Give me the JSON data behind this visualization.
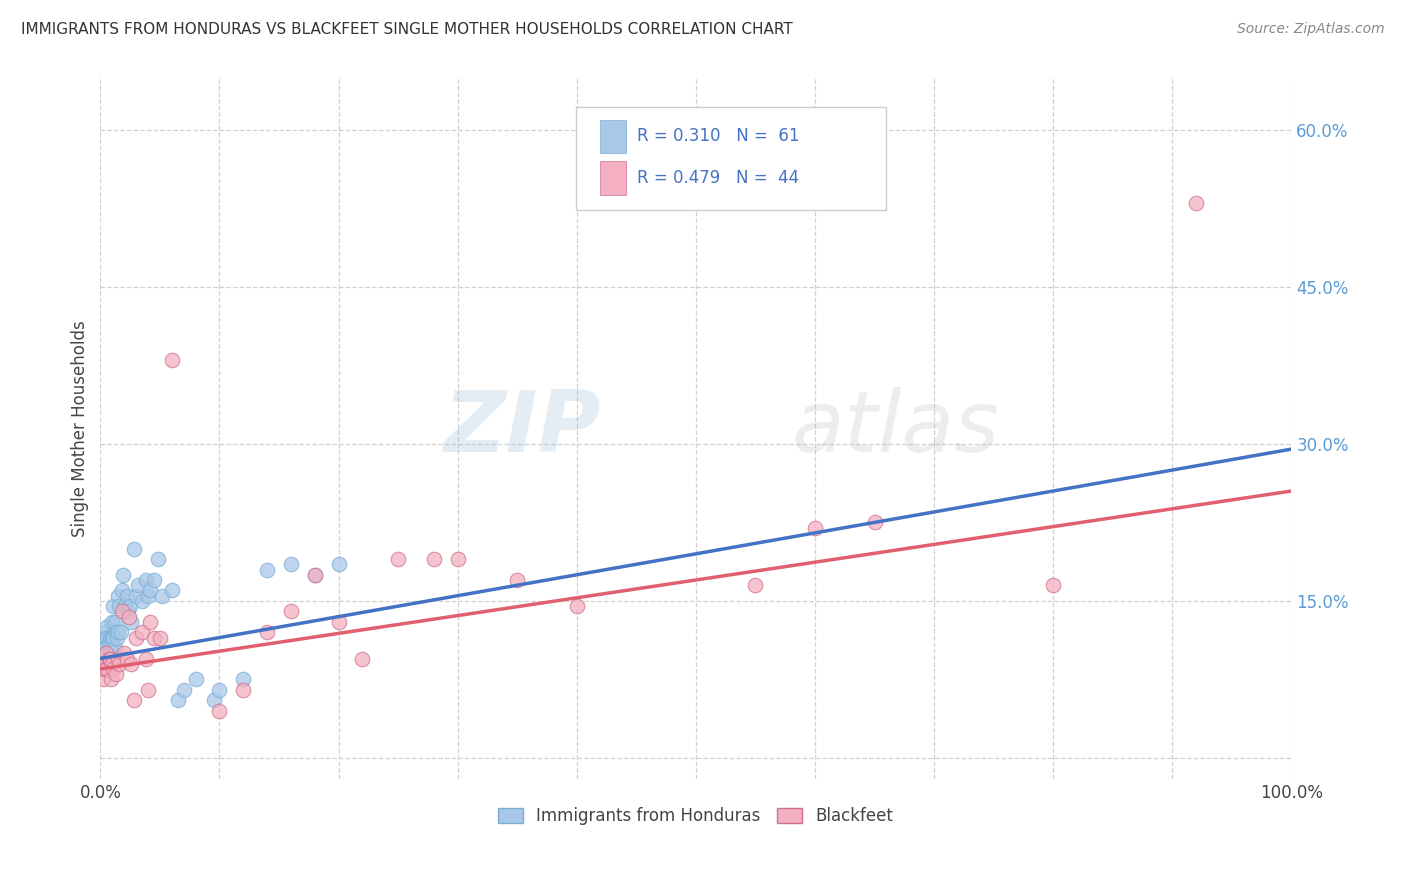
{
  "title": "IMMIGRANTS FROM HONDURAS VS BLACKFEET SINGLE MOTHER HOUSEHOLDS CORRELATION CHART",
  "source": "Source: ZipAtlas.com",
  "ylabel": "Single Mother Households",
  "legend_label_1": "Immigrants from Honduras",
  "legend_label_2": "Blackfeet",
  "legend_r1": "R = 0.310",
  "legend_n1": "N =  61",
  "legend_r2": "R = 0.479",
  "legend_n2": "N =  44",
  "color_blue": "#a8c8e8",
  "color_pink": "#f4b0c0",
  "line_blue": "#4472c4",
  "line_pink": "#e06070",
  "xlim": [
    0,
    1.0
  ],
  "ylim": [
    -0.02,
    0.65
  ],
  "xtick_positions": [
    0.0,
    0.1,
    0.2,
    0.3,
    0.4,
    0.5,
    0.6,
    0.7,
    0.8,
    0.9,
    1.0
  ],
  "ytick_positions": [
    0.0,
    0.15,
    0.3,
    0.45,
    0.6
  ],
  "blue_scatter_x": [
    0.002,
    0.003,
    0.003,
    0.004,
    0.004,
    0.004,
    0.005,
    0.005,
    0.005,
    0.005,
    0.006,
    0.006,
    0.007,
    0.007,
    0.008,
    0.008,
    0.009,
    0.009,
    0.01,
    0.01,
    0.01,
    0.011,
    0.011,
    0.012,
    0.012,
    0.013,
    0.013,
    0.014,
    0.015,
    0.015,
    0.016,
    0.017,
    0.018,
    0.019,
    0.02,
    0.021,
    0.022,
    0.023,
    0.025,
    0.026,
    0.028,
    0.03,
    0.032,
    0.035,
    0.038,
    0.04,
    0.042,
    0.045,
    0.048,
    0.052,
    0.06,
    0.065,
    0.07,
    0.08,
    0.095,
    0.1,
    0.12,
    0.14,
    0.16,
    0.18,
    0.2
  ],
  "blue_scatter_y": [
    0.085,
    0.1,
    0.11,
    0.09,
    0.105,
    0.12,
    0.085,
    0.1,
    0.115,
    0.125,
    0.1,
    0.115,
    0.095,
    0.11,
    0.1,
    0.115,
    0.095,
    0.11,
    0.1,
    0.115,
    0.13,
    0.115,
    0.145,
    0.105,
    0.13,
    0.095,
    0.12,
    0.115,
    0.12,
    0.155,
    0.145,
    0.12,
    0.16,
    0.175,
    0.14,
    0.145,
    0.155,
    0.14,
    0.145,
    0.13,
    0.2,
    0.155,
    0.165,
    0.15,
    0.17,
    0.155,
    0.16,
    0.17,
    0.19,
    0.155,
    0.16,
    0.055,
    0.065,
    0.075,
    0.055,
    0.065,
    0.075,
    0.18,
    0.185,
    0.175,
    0.185
  ],
  "pink_scatter_x": [
    0.002,
    0.003,
    0.004,
    0.005,
    0.006,
    0.007,
    0.008,
    0.009,
    0.01,
    0.011,
    0.013,
    0.015,
    0.016,
    0.018,
    0.02,
    0.022,
    0.024,
    0.026,
    0.028,
    0.03,
    0.035,
    0.038,
    0.04,
    0.042,
    0.045,
    0.05,
    0.06,
    0.1,
    0.12,
    0.14,
    0.16,
    0.18,
    0.2,
    0.22,
    0.25,
    0.28,
    0.3,
    0.35,
    0.4,
    0.55,
    0.6,
    0.65,
    0.8,
    0.92
  ],
  "pink_scatter_y": [
    0.075,
    0.09,
    0.085,
    0.1,
    0.085,
    0.095,
    0.095,
    0.075,
    0.09,
    0.085,
    0.08,
    0.095,
    0.09,
    0.14,
    0.1,
    0.095,
    0.135,
    0.09,
    0.055,
    0.115,
    0.12,
    0.095,
    0.065,
    0.13,
    0.115,
    0.115,
    0.38,
    0.045,
    0.065,
    0.12,
    0.14,
    0.175,
    0.13,
    0.095,
    0.19,
    0.19,
    0.19,
    0.17,
    0.145,
    0.165,
    0.22,
    0.225,
    0.165,
    0.53
  ],
  "blue_line_x": [
    0.0,
    1.0
  ],
  "blue_line_y": [
    0.095,
    0.295
  ],
  "pink_line_x": [
    0.0,
    1.0
  ],
  "pink_line_y": [
    0.085,
    0.255
  ],
  "watermark_text": "ZIPatlas",
  "background_color": "#ffffff",
  "grid_color": "#cccccc"
}
